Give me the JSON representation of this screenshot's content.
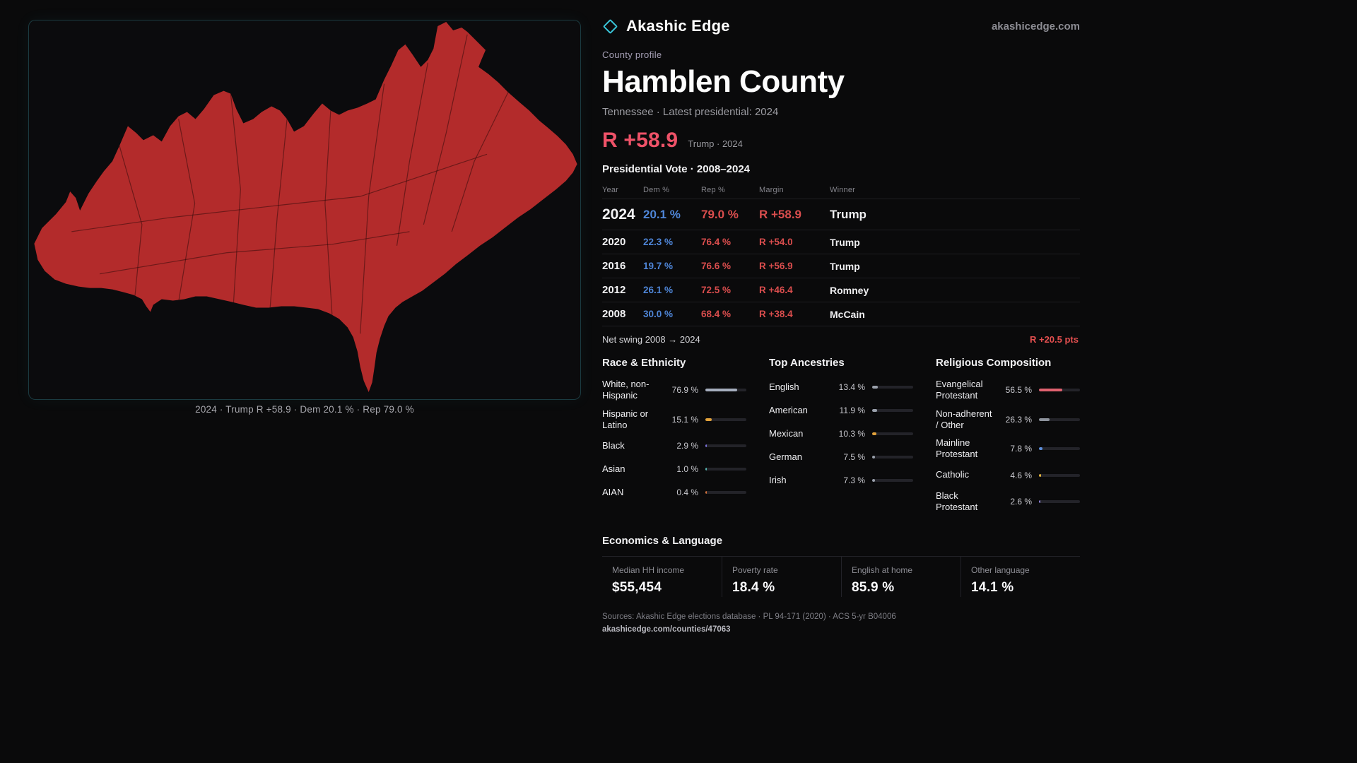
{
  "brand": {
    "name": "Akashic Edge",
    "domain": "akashicedge.com",
    "accent_teal": "#39c3d6"
  },
  "map": {
    "fill_color": "#b32b2b",
    "caption": "2024 · Trump R +58.9 · Dem 20.1 % · Rep 79.0 %"
  },
  "profile": {
    "kicker": "County profile",
    "title": "Hamblen County",
    "subtitle": "Tennessee · Latest presidential: 2024",
    "headline_margin": "R +58.9",
    "headline_note": "Trump · 2024",
    "dem_color": "#4f86d8",
    "rep_color": "#d94d4d",
    "margin_color": "#ee5268"
  },
  "vote_table": {
    "title": "Presidential Vote · 2008–2024",
    "columns": {
      "year": "Year",
      "dem": "Dem %",
      "rep": "Rep %",
      "margin": "Margin",
      "winner": "Winner"
    },
    "rows": [
      {
        "year": "2024",
        "dem": "20.1 %",
        "rep": "79.0 %",
        "margin": "R +58.9",
        "winner": "Trump"
      },
      {
        "year": "2020",
        "dem": "22.3 %",
        "rep": "76.4 %",
        "margin": "R +54.0",
        "winner": "Trump"
      },
      {
        "year": "2016",
        "dem": "19.7 %",
        "rep": "76.6 %",
        "margin": "R +56.9",
        "winner": "Trump"
      },
      {
        "year": "2012",
        "dem": "26.1 %",
        "rep": "72.5 %",
        "margin": "R +46.4",
        "winner": "Romney"
      },
      {
        "year": "2008",
        "dem": "30.0 %",
        "rep": "68.4 %",
        "margin": "R +38.4",
        "winner": "McCain"
      }
    ],
    "net_swing_label": "Net swing 2008 → 2024",
    "net_swing_value": "R +20.5 pts"
  },
  "race": {
    "title": "Race & Ethnicity",
    "items": [
      {
        "label": "White, non-Hispanic",
        "value": "76.9 %",
        "pct": 76.9,
        "color": "#a6aebe"
      },
      {
        "label": "Hispanic or Latino",
        "value": "15.1 %",
        "pct": 15.1,
        "color": "#e2a23b"
      },
      {
        "label": "Black",
        "value": "2.9 %",
        "pct": 2.9,
        "color": "#7d74dd"
      },
      {
        "label": "Asian",
        "value": "1.0 %",
        "pct": 1.0,
        "color": "#57b8b2"
      },
      {
        "label": "AIAN",
        "value": "0.4 %",
        "pct": 0.4,
        "color": "#d4713a"
      }
    ]
  },
  "ancestries": {
    "title": "Top Ancestries",
    "items": [
      {
        "label": "English",
        "value": "13.4 %",
        "pct": 13.4,
        "color": "#9aa0ab"
      },
      {
        "label": "American",
        "value": "11.9 %",
        "pct": 11.9,
        "color": "#9aa0ab"
      },
      {
        "label": "Mexican",
        "value": "10.3 %",
        "pct": 10.3,
        "color": "#e2a23b"
      },
      {
        "label": "German",
        "value": "7.5 %",
        "pct": 7.5,
        "color": "#9aa0ab"
      },
      {
        "label": "Irish",
        "value": "7.3 %",
        "pct": 7.3,
        "color": "#9aa0ab"
      }
    ]
  },
  "religion": {
    "title": "Religious Composition",
    "items": [
      {
        "label": "Evangelical Protestant",
        "value": "56.5 %",
        "pct": 56.5,
        "color": "#e06270"
      },
      {
        "label": "Non-adherent / Other",
        "value": "26.3 %",
        "pct": 26.3,
        "color": "#8d939d"
      },
      {
        "label": "Mainline Protestant",
        "value": "7.8 %",
        "pct": 7.8,
        "color": "#5d8fdc"
      },
      {
        "label": "Catholic",
        "value": "4.6 %",
        "pct": 4.6,
        "color": "#e2b33b"
      },
      {
        "label": "Black Protestant",
        "value": "2.6 %",
        "pct": 2.6,
        "color": "#8d7fd6"
      }
    ]
  },
  "economics": {
    "title": "Economics & Language",
    "stats": [
      {
        "label": "Median HH income",
        "value": "$55,454"
      },
      {
        "label": "Poverty rate",
        "value": "18.4 %"
      },
      {
        "label": "English at home",
        "value": "85.9 %"
      },
      {
        "label": "Other language",
        "value": "14.1 %"
      }
    ]
  },
  "footer": {
    "sources": "Sources: Akashic Edge elections database · PL 94-171 (2020) · ACS 5-yr B04006",
    "permalink": "akashicedge.com/counties/47063"
  }
}
